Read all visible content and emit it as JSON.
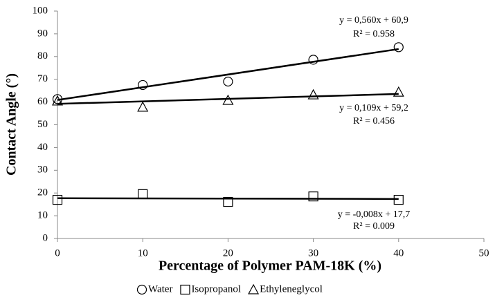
{
  "chart_data": {
    "type": "scatter",
    "xlabel": "Percentage of  Polymer PAM-18K (%)",
    "ylabel": "Contact  Angle (°)",
    "xlim": [
      0,
      50
    ],
    "xticks": [
      0,
      10,
      20,
      30,
      40,
      50
    ],
    "ylim": [
      0,
      100
    ],
    "yticks": [
      0,
      10,
      20,
      30,
      40,
      50,
      60,
      70,
      80,
      90,
      100
    ],
    "x": [
      0,
      10,
      20,
      30,
      40
    ],
    "series": [
      {
        "name": "Water",
        "marker": "circle",
        "color": "#000000",
        "values": [
          61.3,
          67.5,
          69,
          78.6,
          84.1
        ],
        "trendline": {
          "slope": 0.56,
          "intercept": 60.9,
          "r2": 0.958,
          "equation": "y = 0,560x + 60,9",
          "r2_label": "R² = 0.958"
        }
      },
      {
        "name": "Isopropanol",
        "marker": "square",
        "color": "#000000",
        "values": [
          17,
          19.5,
          16.1,
          18.5,
          17
        ],
        "trendline": {
          "slope": -0.008,
          "intercept": 17.7,
          "r2": 0.009,
          "equation": "y = -0,008x + 17,7",
          "r2_label": "R² = 0.009"
        }
      },
      {
        "name": "Ethyleneglycol",
        "marker": "triangle",
        "color": "#000000",
        "values": [
          60.5,
          57.8,
          60.8,
          63.2,
          64.4
        ],
        "trendline": {
          "slope": 0.109,
          "intercept": 59.2,
          "r2": 0.456,
          "equation": "y = 0,109x + 59,2",
          "r2_label": "R² = 0.456"
        }
      }
    ],
    "legend": "bottom"
  }
}
